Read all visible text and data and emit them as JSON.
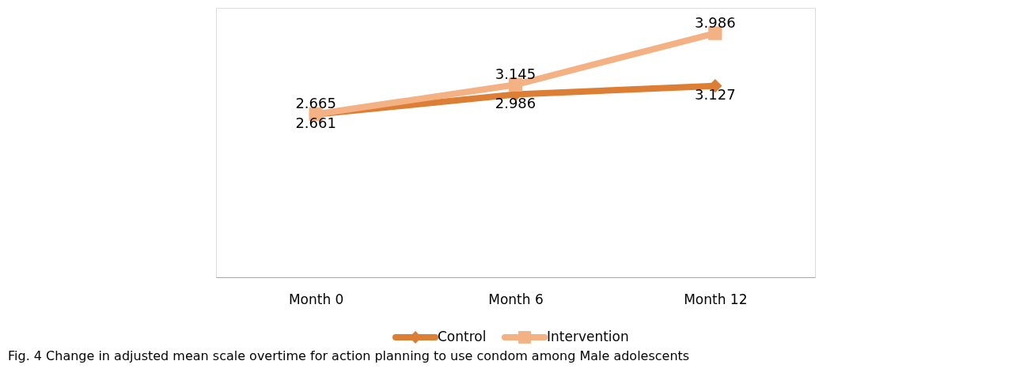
{
  "chart_data": {
    "type": "line",
    "categories": [
      "Month 0",
      "Month 6",
      "Month 12"
    ],
    "series": [
      {
        "name": "Control",
        "color": "#dd7e35",
        "marker": "diamond",
        "values": [
          2.661,
          2.986,
          3.127
        ]
      },
      {
        "name": "Intervention",
        "color": "#f4b183",
        "marker": "square",
        "values": [
          2.665,
          3.145,
          3.986
        ]
      }
    ],
    "ylim": [
      0,
      4.4
    ],
    "tick_labels": "x",
    "data_labels": true,
    "legend": "bottom",
    "grid": false,
    "annotations": [
      "Fig. 4 Change in adjusted mean scale overtime for action planning to use condom among Male adolescents"
    ]
  }
}
